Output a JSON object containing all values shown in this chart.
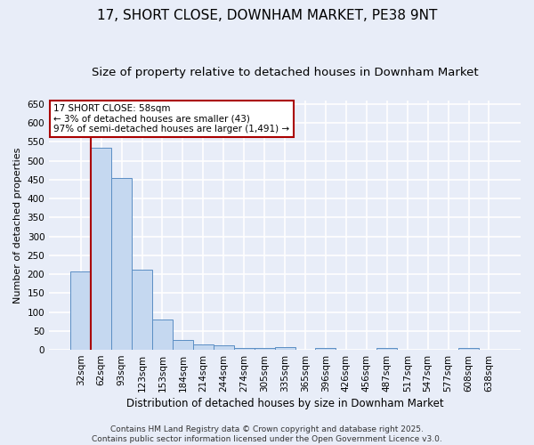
{
  "title": "17, SHORT CLOSE, DOWNHAM MARKET, PE38 9NT",
  "subtitle": "Size of property relative to detached houses in Downham Market",
  "xlabel": "Distribution of detached houses by size in Downham Market",
  "ylabel": "Number of detached properties",
  "categories": [
    "32sqm",
    "62sqm",
    "93sqm",
    "123sqm",
    "153sqm",
    "184sqm",
    "214sqm",
    "244sqm",
    "274sqm",
    "305sqm",
    "335sqm",
    "365sqm",
    "396sqm",
    "426sqm",
    "456sqm",
    "487sqm",
    "517sqm",
    "547sqm",
    "577sqm",
    "608sqm",
    "638sqm"
  ],
  "values": [
    208,
    535,
    455,
    212,
    80,
    26,
    14,
    11,
    5,
    5,
    8,
    0,
    4,
    0,
    0,
    5,
    0,
    0,
    0,
    5,
    0
  ],
  "bar_color": "#c5d8f0",
  "bar_edge_color": "#5b8ec4",
  "background_color": "#e8edf8",
  "grid_color": "#ffffff",
  "annotation_text": "17 SHORT CLOSE: 58sqm\n← 3% of detached houses are smaller (43)\n97% of semi-detached houses are larger (1,491) →",
  "annotation_box_color": "#ffffff",
  "annotation_box_edge_color": "#aa0000",
  "vline_color": "#aa0000",
  "vline_x": 0.5,
  "ylim": [
    0,
    660
  ],
  "yticks": [
    0,
    50,
    100,
    150,
    200,
    250,
    300,
    350,
    400,
    450,
    500,
    550,
    600,
    650
  ],
  "footer_text": "Contains HM Land Registry data © Crown copyright and database right 2025.\nContains public sector information licensed under the Open Government Licence v3.0.",
  "title_fontsize": 11,
  "subtitle_fontsize": 9.5,
  "xlabel_fontsize": 8.5,
  "ylabel_fontsize": 8,
  "tick_fontsize": 7.5,
  "annotation_fontsize": 7.5,
  "footer_fontsize": 6.5
}
